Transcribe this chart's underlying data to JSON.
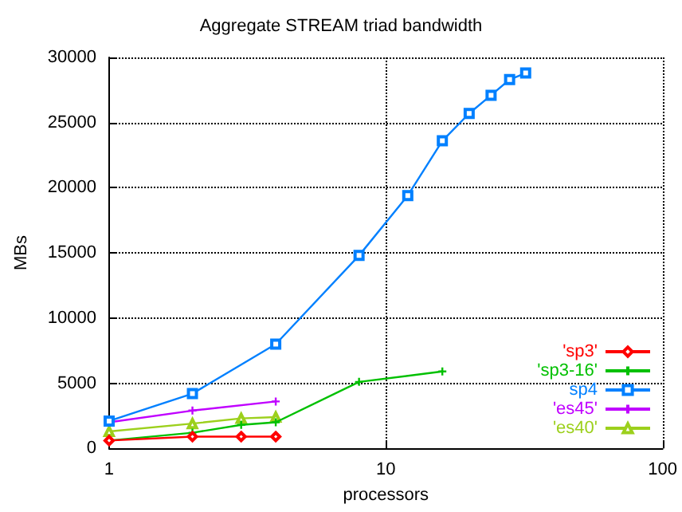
{
  "chart_data": {
    "type": "line",
    "title": "Aggregate STREAM triad bandwidth",
    "xlabel": "processors",
    "ylabel": "MBs",
    "log": "x",
    "xlim": [
      1,
      100
    ],
    "xticks": [
      1,
      10,
      100
    ],
    "ylim": [
      0,
      30000
    ],
    "yticks": [
      0,
      5000,
      10000,
      15000,
      20000,
      25000,
      30000
    ],
    "grid": true,
    "legend": "bottom right",
    "line_style": "solid",
    "series": [
      {
        "name": "'sp3'",
        "color": "#ff0000",
        "marker": "diamond",
        "x": [
          1,
          2,
          3,
          4
        ],
        "values": [
          600,
          900,
          900,
          900
        ]
      },
      {
        "name": "'sp3-16'",
        "color": "#00c000",
        "marker": "cross",
        "x": [
          1,
          2,
          3,
          4,
          8,
          16
        ],
        "values": [
          600,
          1200,
          1800,
          2000,
          5100,
          5900
        ]
      },
      {
        "name": "sp4",
        "color": "#0080ff",
        "marker": "square",
        "x": [
          1,
          2,
          4,
          8,
          12,
          16,
          20,
          24,
          28,
          32
        ],
        "values": [
          2100,
          4200,
          8000,
          14800,
          19400,
          23600,
          25700,
          27100,
          28300,
          28800
        ]
      },
      {
        "name": "'es45'",
        "color": "#c000ff",
        "marker": "cross",
        "x": [
          1,
          2,
          4
        ],
        "values": [
          2000,
          2900,
          3600
        ]
      },
      {
        "name": "'es40'",
        "color": "#9cd01c",
        "marker": "triangle",
        "x": [
          1,
          2,
          3,
          4
        ],
        "values": [
          1300,
          1900,
          2300,
          2400
        ]
      }
    ]
  }
}
